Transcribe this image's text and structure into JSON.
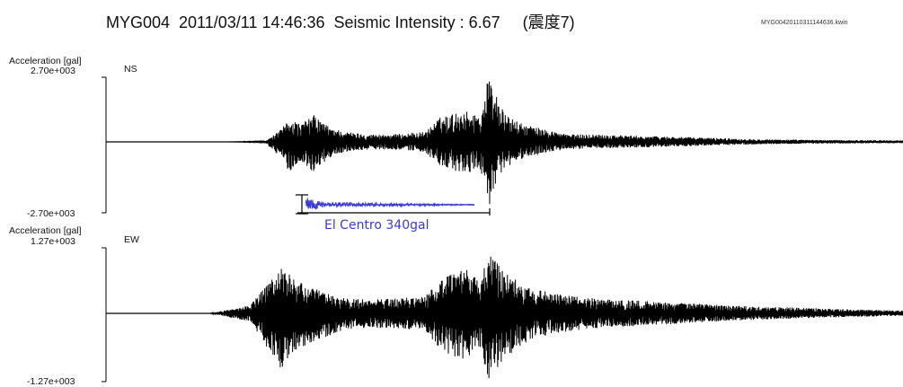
{
  "title": "MYG004  2011/03/11 14:46:36  Seismic Intensity : 6.67     (震度7)",
  "filename": "MYG00420110311144636.kwin",
  "chart_data": [
    {
      "type": "line",
      "component": "NS",
      "ylabel": "Acceleration [gal]",
      "ylim": [
        -2700,
        2700
      ],
      "ytick_top": "2.70e+003",
      "ytick_bottom": "-2.70e+003",
      "envelope": {
        "x": [
          0.0,
          0.15,
          0.2,
          0.22,
          0.23,
          0.245,
          0.26,
          0.28,
          0.3,
          0.33,
          0.36,
          0.4,
          0.42,
          0.45,
          0.47,
          0.48,
          0.5,
          0.52,
          0.55,
          0.58,
          0.62,
          0.66,
          0.72,
          0.8,
          0.88,
          1.0
        ],
        "upper": [
          0,
          0,
          30,
          500,
          950,
          700,
          1100,
          600,
          400,
          300,
          300,
          400,
          1000,
          1250,
          1050,
          2700,
          1100,
          750,
          500,
          300,
          300,
          250,
          200,
          120,
          80,
          60
        ],
        "lower": [
          0,
          0,
          -30,
          -700,
          -1200,
          -800,
          -1200,
          -650,
          -400,
          -300,
          -300,
          -400,
          -1050,
          -1300,
          -1100,
          -2600,
          -1100,
          -700,
          -450,
          -300,
          -250,
          -230,
          -180,
          -110,
          -70,
          -50
        ]
      }
    },
    {
      "type": "line",
      "component": "EW",
      "ylabel": "Acceleration [gal]",
      "ylim": [
        -1270,
        1270
      ],
      "ytick_top": "1.27e+003",
      "ytick_bottom": "-1.27e+003",
      "envelope": {
        "x": [
          0.0,
          0.13,
          0.18,
          0.2,
          0.22,
          0.24,
          0.27,
          0.3,
          0.33,
          0.36,
          0.4,
          0.42,
          0.45,
          0.47,
          0.48,
          0.5,
          0.53,
          0.56,
          0.6,
          0.65,
          0.7,
          0.78,
          0.86,
          0.93,
          1.0
        ],
        "upper": [
          0,
          0,
          150,
          500,
          900,
          600,
          420,
          280,
          260,
          280,
          320,
          650,
          850,
          600,
          1180,
          800,
          500,
          380,
          300,
          250,
          220,
          150,
          110,
          80,
          50
        ],
        "lower": [
          0,
          0,
          -150,
          -600,
          -1050,
          -700,
          -480,
          -300,
          -270,
          -280,
          -320,
          -700,
          -900,
          -650,
          -1270,
          -850,
          -520,
          -380,
          -300,
          -250,
          -210,
          -140,
          -100,
          -70,
          -45
        ]
      }
    }
  ],
  "comparison": {
    "label": "El Centro 340gal",
    "color": "#3b3bd6",
    "peak_gal": 340
  }
}
